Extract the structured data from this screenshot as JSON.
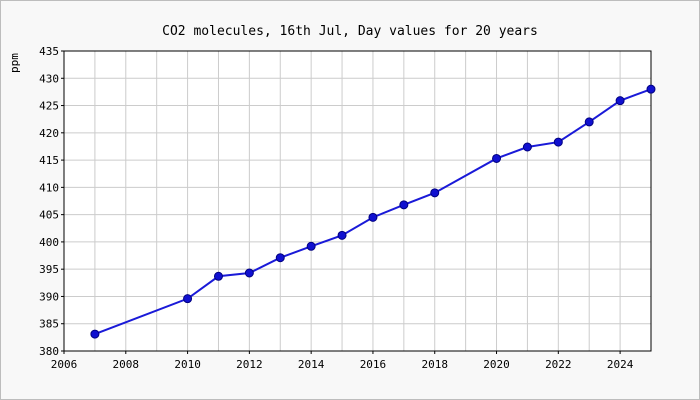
{
  "chart_data": {
    "type": "line",
    "title": "CO2 molecules, 16th Jul, Day values for 20 years",
    "xlabel": "",
    "ylabel": "ppm",
    "xlim": [
      2006,
      2025
    ],
    "ylim": [
      380,
      435
    ],
    "x_ticks": [
      2006,
      2008,
      2010,
      2012,
      2014,
      2016,
      2018,
      2020,
      2022,
      2024
    ],
    "y_ticks": [
      380,
      385,
      390,
      395,
      400,
      405,
      410,
      415,
      420,
      425,
      430,
      435
    ],
    "grid": true,
    "colors": {
      "line": "#1a1ad8",
      "marker": "#1010d0"
    },
    "series": [
      {
        "x": [
          2007,
          2010,
          2011,
          2012,
          2013,
          2014,
          2015,
          2016,
          2017,
          2018,
          2020,
          2021,
          2022,
          2023,
          2024,
          2025
        ],
        "values": [
          383.1,
          389.6,
          393.7,
          394.3,
          397.1,
          399.2,
          401.2,
          404.5,
          406.8,
          409.0,
          415.3,
          417.4,
          418.3,
          422.0,
          425.9,
          428.0
        ]
      }
    ]
  }
}
